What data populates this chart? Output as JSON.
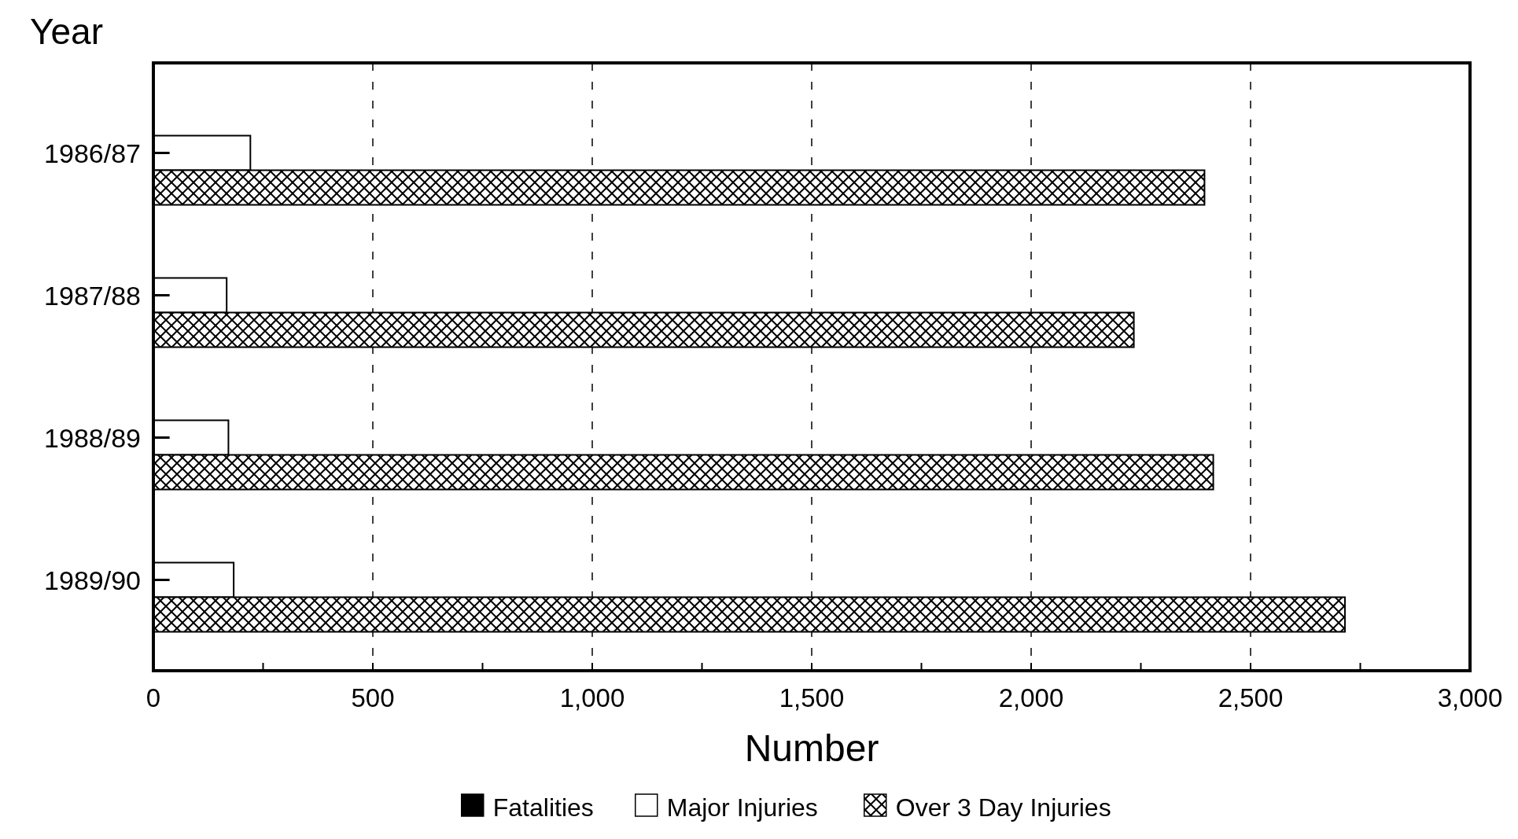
{
  "chart_data": {
    "type": "bar",
    "orientation": "horizontal",
    "xlabel": "Number",
    "ylabel": "Year",
    "categories": [
      "1986/87",
      "1987/88",
      "1988/89",
      "1989/90"
    ],
    "series": [
      {
        "name": "Fatalities",
        "color": "#000000",
        "values": [
          37,
          37,
          37,
          37
        ]
      },
      {
        "name": "Major Injuries",
        "color": "#ffffff",
        "values": [
          221,
          167,
          171,
          183
        ]
      },
      {
        "name": "Over 3 Day Injuries",
        "color": "#000000",
        "values": [
          2395,
          2234,
          2415,
          2715
        ]
      }
    ],
    "xlim": [
      0,
      3000
    ],
    "xticks": [
      0,
      {
        "value": 250,
        "label": null
      },
      {
        "value": 500,
        "label": "500"
      },
      {
        "value": 750,
        "label": null
      },
      {
        "value": 1000,
        "label": "1,000"
      },
      {
        "value": 1250,
        "label": null
      },
      {
        "value": 1500,
        "label": "1,500"
      },
      {
        "value": 1750,
        "label": null
      },
      {
        "value": 2000,
        "label": "2,000"
      },
      {
        "value": 2250,
        "label": null
      },
      {
        "value": 2500,
        "label": "2,500"
      },
      {
        "value": 2750,
        "label": null
      },
      {
        "value": 3000,
        "label": "3,000"
      }
    ],
    "grid": "x",
    "legend": "bottom"
  }
}
